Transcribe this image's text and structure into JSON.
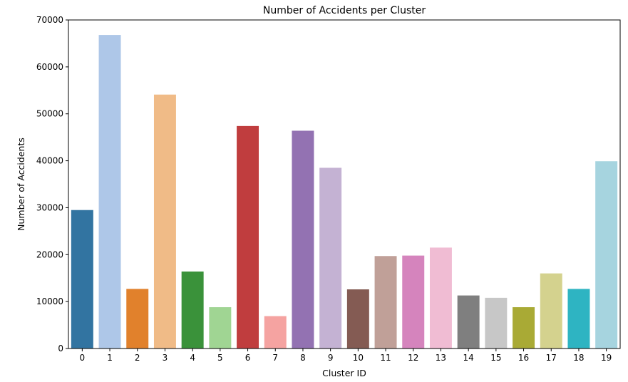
{
  "chart_data": {
    "type": "bar",
    "title": "Number of Accidents per Cluster",
    "xlabel": "Cluster ID",
    "ylabel": "Number of Accidents",
    "categories": [
      "0",
      "1",
      "2",
      "3",
      "4",
      "5",
      "6",
      "7",
      "8",
      "9",
      "10",
      "11",
      "12",
      "13",
      "14",
      "15",
      "16",
      "17",
      "18",
      "19"
    ],
    "values": [
      29500,
      66800,
      12700,
      54100,
      16400,
      8800,
      47400,
      6900,
      46400,
      38500,
      12600,
      19700,
      19800,
      21500,
      11300,
      10800,
      8800,
      16000,
      12700,
      39900
    ],
    "colors": [
      "#3274a1",
      "#aec7e8",
      "#e1812c",
      "#f0bb87",
      "#3a923a",
      "#a0d593",
      "#c03d3e",
      "#f5a3a1",
      "#9372b2",
      "#c4b2d3",
      "#845b53",
      "#c0a098",
      "#d584bd",
      "#f0bcd3",
      "#7f7f7f",
      "#c7c7c7",
      "#a9aa35",
      "#d4d28e",
      "#2eb4c2",
      "#a6d4df"
    ],
    "yticks": [
      0,
      10000,
      20000,
      30000,
      40000,
      50000,
      60000,
      70000
    ],
    "ylim": [
      0,
      70000
    ],
    "grid": false,
    "legend": "none"
  }
}
